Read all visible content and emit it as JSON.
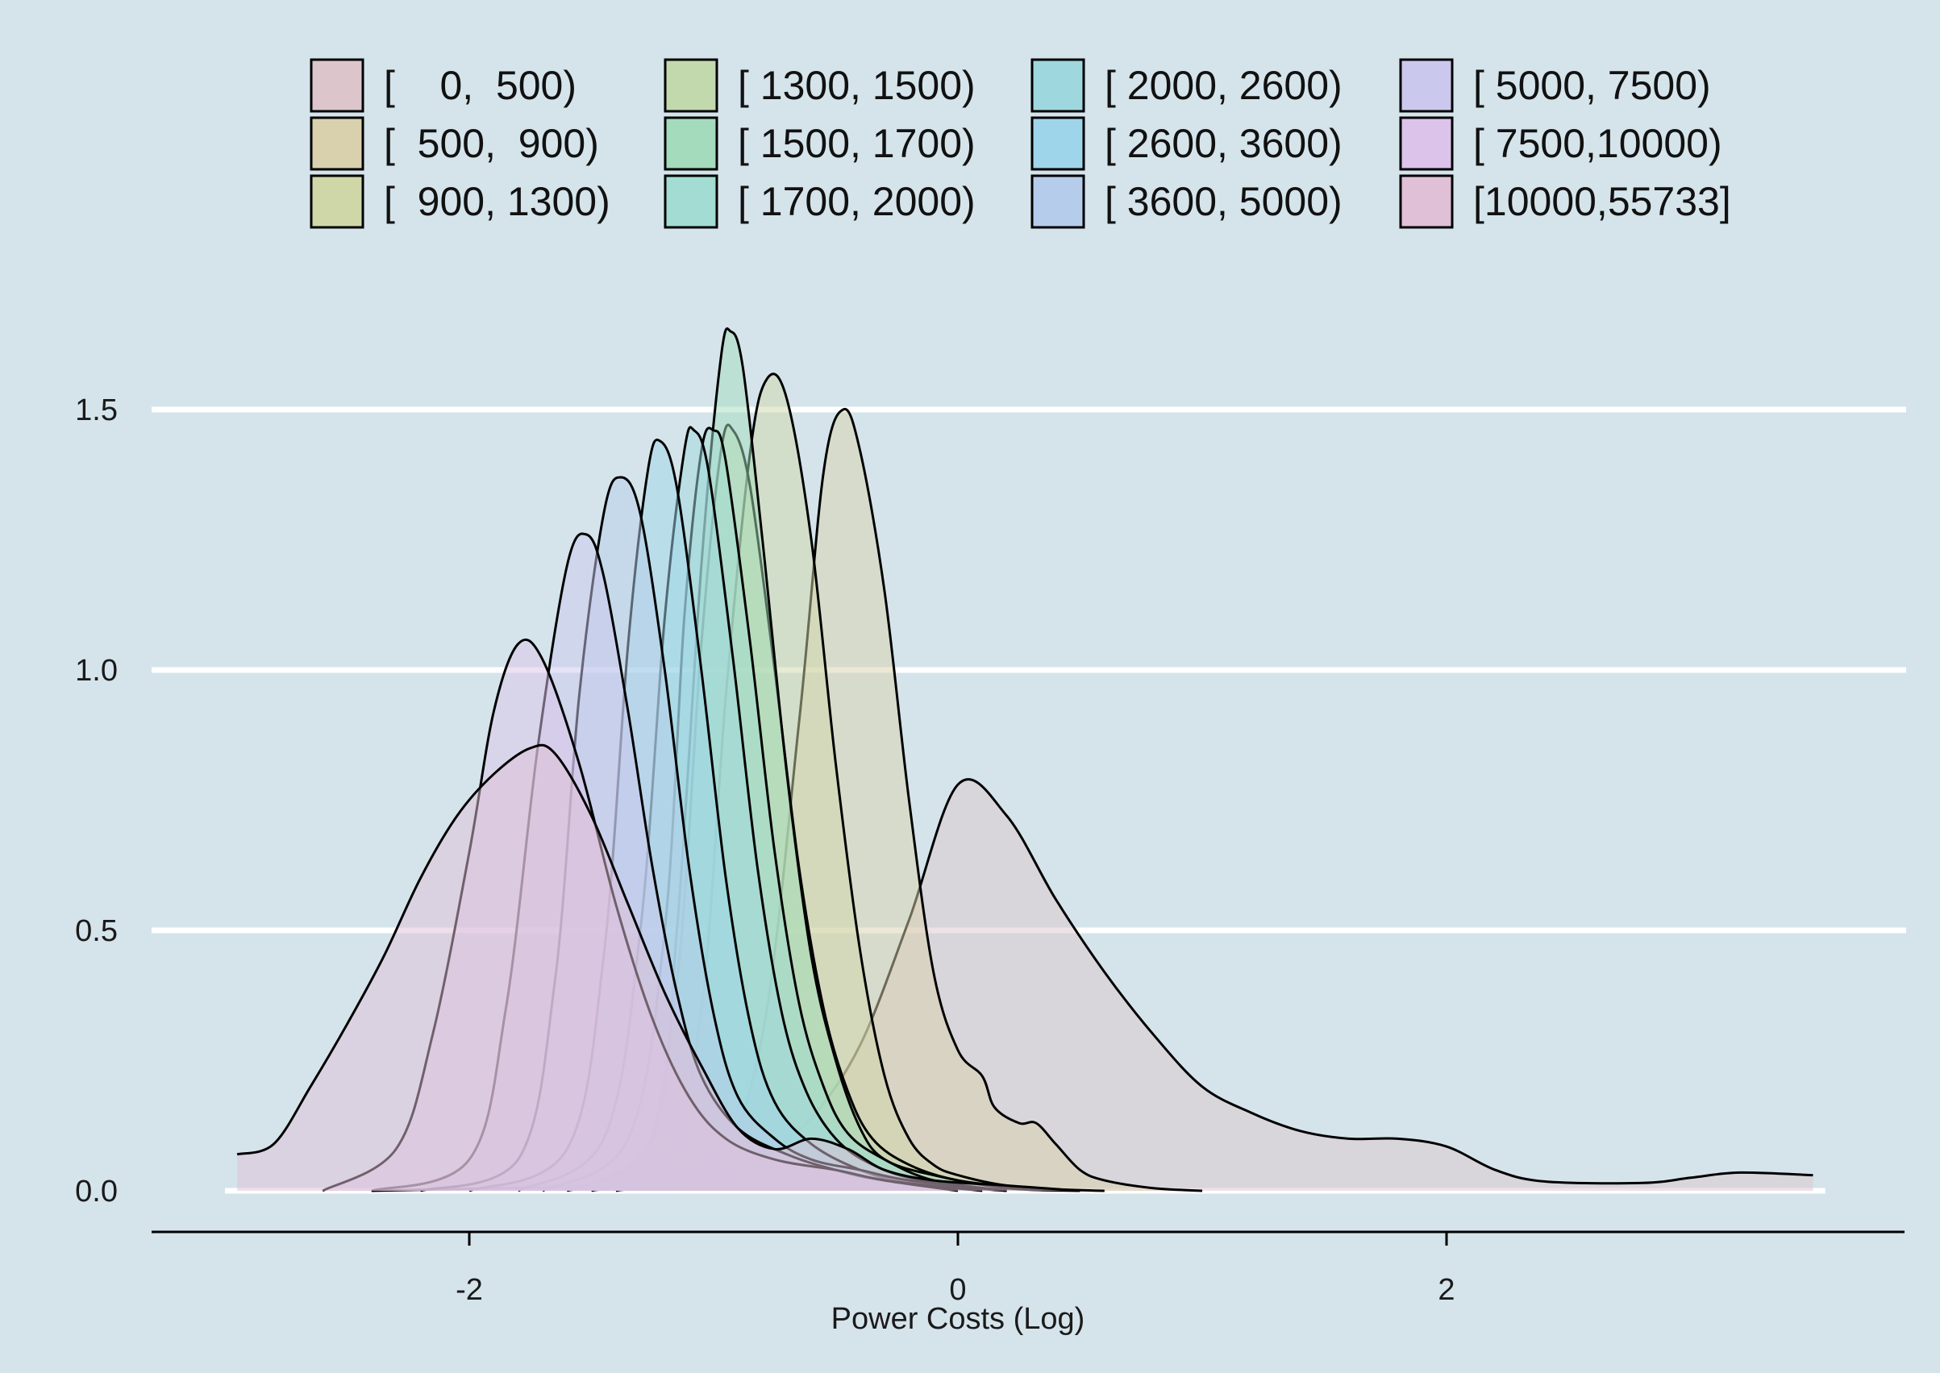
{
  "chart_data": {
    "type": "area",
    "title": "",
    "xlabel": "Power Costs (Log)",
    "ylabel": "",
    "xlim": [
      -3.0,
      3.7
    ],
    "ylim": [
      0.0,
      1.7
    ],
    "x_ticks": [
      -2,
      0,
      2
    ],
    "x_tick_labels": [
      "-2",
      "0",
      "2"
    ],
    "y_ticks": [
      0.0,
      0.5,
      1.0,
      1.5
    ],
    "y_tick_labels": [
      "0.0",
      "0.5",
      "1.0",
      "1.5"
    ],
    "grid": "horizontal",
    "legend_position": "top",
    "series": [
      {
        "name": "[    0,  500)",
        "color": "#dcc6cb",
        "points": [
          [
            -2.4,
            0.0
          ],
          [
            -1.9,
            0.005
          ],
          [
            -1.4,
            0.01
          ],
          [
            -1.0,
            0.03
          ],
          [
            -0.8,
            0.07
          ],
          [
            -0.6,
            0.14
          ],
          [
            -0.4,
            0.28
          ],
          [
            -0.2,
            0.52
          ],
          [
            0.0,
            0.78
          ],
          [
            0.2,
            0.72
          ],
          [
            0.4,
            0.56
          ],
          [
            0.6,
            0.42
          ],
          [
            0.8,
            0.3
          ],
          [
            1.0,
            0.2
          ],
          [
            1.2,
            0.15
          ],
          [
            1.4,
            0.115
          ],
          [
            1.6,
            0.1
          ],
          [
            1.8,
            0.1
          ],
          [
            2.0,
            0.085
          ],
          [
            2.2,
            0.04
          ],
          [
            2.4,
            0.018
          ],
          [
            2.8,
            0.015
          ],
          [
            3.0,
            0.025
          ],
          [
            3.2,
            0.035
          ],
          [
            3.5,
            0.03
          ]
        ]
      },
      {
        "name": "[  500,  900)",
        "color": "#d9d1ad",
        "points": [
          [
            -1.4,
            0.0
          ],
          [
            -1.0,
            0.05
          ],
          [
            -0.8,
            0.3
          ],
          [
            -0.65,
            0.9
          ],
          [
            -0.55,
            1.38
          ],
          [
            -0.47,
            1.5
          ],
          [
            -0.4,
            1.42
          ],
          [
            -0.3,
            1.15
          ],
          [
            -0.2,
            0.75
          ],
          [
            -0.1,
            0.42
          ],
          [
            0.0,
            0.27
          ],
          [
            0.1,
            0.22
          ],
          [
            0.15,
            0.16
          ],
          [
            0.25,
            0.13
          ],
          [
            0.32,
            0.13
          ],
          [
            0.4,
            0.09
          ],
          [
            0.5,
            0.04
          ],
          [
            0.6,
            0.02
          ],
          [
            0.8,
            0.005
          ],
          [
            1.0,
            0.0
          ]
        ]
      },
      {
        "name": "[  900, 1300)",
        "color": "#cfd7a8",
        "points": [
          [
            -1.5,
            0.0
          ],
          [
            -1.2,
            0.04
          ],
          [
            -1.05,
            0.35
          ],
          [
            -0.95,
            0.95
          ],
          [
            -0.85,
            1.42
          ],
          [
            -0.78,
            1.56
          ],
          [
            -0.7,
            1.52
          ],
          [
            -0.6,
            1.25
          ],
          [
            -0.5,
            0.82
          ],
          [
            -0.4,
            0.46
          ],
          [
            -0.3,
            0.22
          ],
          [
            -0.2,
            0.1
          ],
          [
            -0.1,
            0.05
          ],
          [
            0.0,
            0.03
          ],
          [
            0.2,
            0.01
          ],
          [
            0.5,
            0.0
          ]
        ]
      },
      {
        "name": "[ 1300, 1500)",
        "color": "#c2d9ae",
        "points": [
          [
            -1.6,
            0.0
          ],
          [
            -1.3,
            0.05
          ],
          [
            -1.15,
            0.4
          ],
          [
            -1.05,
            1.05
          ],
          [
            -0.97,
            1.42
          ],
          [
            -0.92,
            1.46
          ],
          [
            -0.85,
            1.35
          ],
          [
            -0.75,
            1.0
          ],
          [
            -0.65,
            0.62
          ],
          [
            -0.55,
            0.35
          ],
          [
            -0.45,
            0.19
          ],
          [
            -0.35,
            0.1
          ],
          [
            -0.2,
            0.05
          ],
          [
            0.0,
            0.02
          ],
          [
            0.3,
            0.005
          ],
          [
            0.6,
            0.0
          ]
        ]
      },
      {
        "name": "[ 1500, 1700)",
        "color": "#a3dbbc",
        "points": [
          [
            -1.6,
            0.0
          ],
          [
            -1.25,
            0.1
          ],
          [
            -1.15,
            0.5
          ],
          [
            -1.05,
            1.2
          ],
          [
            -0.97,
            1.6
          ],
          [
            -0.93,
            1.65
          ],
          [
            -0.88,
            1.58
          ],
          [
            -0.8,
            1.25
          ],
          [
            -0.7,
            0.8
          ],
          [
            -0.6,
            0.45
          ],
          [
            -0.5,
            0.25
          ],
          [
            -0.4,
            0.12
          ],
          [
            -0.3,
            0.06
          ],
          [
            -0.1,
            0.03
          ],
          [
            0.2,
            0.005
          ],
          [
            0.5,
            0.0
          ]
        ]
      },
      {
        "name": "[ 1700, 2000)",
        "color": "#a2dcd2",
        "points": [
          [
            -1.7,
            0.0
          ],
          [
            -1.35,
            0.1
          ],
          [
            -1.2,
            0.5
          ],
          [
            -1.12,
            1.1
          ],
          [
            -1.05,
            1.42
          ],
          [
            -1.0,
            1.46
          ],
          [
            -0.95,
            1.4
          ],
          [
            -0.85,
            1.05
          ],
          [
            -0.75,
            0.65
          ],
          [
            -0.65,
            0.36
          ],
          [
            -0.55,
            0.2
          ],
          [
            -0.45,
            0.11
          ],
          [
            -0.3,
            0.06
          ],
          [
            -0.1,
            0.02
          ],
          [
            0.2,
            0.0
          ]
        ]
      },
      {
        "name": "[ 2000, 2600)",
        "color": "#9fd7de",
        "points": [
          [
            -1.8,
            0.0
          ],
          [
            -1.45,
            0.1
          ],
          [
            -1.3,
            0.5
          ],
          [
            -1.2,
            1.1
          ],
          [
            -1.12,
            1.42
          ],
          [
            -1.08,
            1.46
          ],
          [
            -1.02,
            1.38
          ],
          [
            -0.92,
            1.02
          ],
          [
            -0.82,
            0.62
          ],
          [
            -0.72,
            0.34
          ],
          [
            -0.62,
            0.19
          ],
          [
            -0.5,
            0.1
          ],
          [
            -0.35,
            0.05
          ],
          [
            -0.15,
            0.02
          ],
          [
            0.2,
            0.0
          ]
        ]
      },
      {
        "name": "[ 2600, 3600)",
        "color": "#9fd5ea",
        "points": [
          [
            -2.0,
            0.0
          ],
          [
            -1.6,
            0.08
          ],
          [
            -1.45,
            0.45
          ],
          [
            -1.35,
            1.05
          ],
          [
            -1.27,
            1.38
          ],
          [
            -1.22,
            1.44
          ],
          [
            -1.15,
            1.35
          ],
          [
            -1.05,
            1.0
          ],
          [
            -0.95,
            0.6
          ],
          [
            -0.85,
            0.32
          ],
          [
            -0.75,
            0.17
          ],
          [
            -0.6,
            0.09
          ],
          [
            -0.4,
            0.04
          ],
          [
            -0.2,
            0.015
          ],
          [
            0.2,
            0.0
          ]
        ]
      },
      {
        "name": "[ 3600, 5000)",
        "color": "#b5cdea",
        "points": [
          [
            -2.2,
            0.0
          ],
          [
            -1.8,
            0.06
          ],
          [
            -1.65,
            0.4
          ],
          [
            -1.55,
            0.95
          ],
          [
            -1.45,
            1.3
          ],
          [
            -1.38,
            1.37
          ],
          [
            -1.3,
            1.3
          ],
          [
            -1.2,
            1.0
          ],
          [
            -1.1,
            0.62
          ],
          [
            -1.0,
            0.34
          ],
          [
            -0.9,
            0.18
          ],
          [
            -0.75,
            0.1
          ],
          [
            -0.6,
            0.06
          ],
          [
            -0.4,
            0.04
          ],
          [
            -0.2,
            0.02
          ],
          [
            0.2,
            0.0
          ]
        ]
      },
      {
        "name": "[ 5000, 7500)",
        "color": "#cbc8ee",
        "points": [
          [
            -2.4,
            0.0
          ],
          [
            -2.0,
            0.06
          ],
          [
            -1.85,
            0.35
          ],
          [
            -1.72,
            0.85
          ],
          [
            -1.6,
            1.2
          ],
          [
            -1.52,
            1.26
          ],
          [
            -1.45,
            1.18
          ],
          [
            -1.35,
            0.92
          ],
          [
            -1.25,
            0.62
          ],
          [
            -1.15,
            0.38
          ],
          [
            -1.05,
            0.22
          ],
          [
            -0.9,
            0.12
          ],
          [
            -0.7,
            0.07
          ],
          [
            -0.5,
            0.04
          ],
          [
            -0.3,
            0.02
          ],
          [
            0.1,
            0.0
          ]
        ]
      },
      {
        "name": "[ 7500,10000)",
        "color": "#dcc3ea",
        "points": [
          [
            -2.6,
            0.0
          ],
          [
            -2.3,
            0.08
          ],
          [
            -2.15,
            0.3
          ],
          [
            -2.0,
            0.65
          ],
          [
            -1.9,
            0.92
          ],
          [
            -1.8,
            1.05
          ],
          [
            -1.7,
            1.02
          ],
          [
            -1.55,
            0.82
          ],
          [
            -1.4,
            0.55
          ],
          [
            -1.25,
            0.33
          ],
          [
            -1.1,
            0.18
          ],
          [
            -0.95,
            0.1
          ],
          [
            -0.75,
            0.06
          ],
          [
            -0.5,
            0.04
          ],
          [
            -0.3,
            0.02
          ],
          [
            0.0,
            0.0
          ]
        ]
      },
      {
        "name": "[10000,55733]",
        "color": "#dfc0d6",
        "points": [
          [
            -2.95,
            0.07
          ],
          [
            -2.8,
            0.09
          ],
          [
            -2.65,
            0.2
          ],
          [
            -2.5,
            0.32
          ],
          [
            -2.35,
            0.45
          ],
          [
            -2.2,
            0.6
          ],
          [
            -2.05,
            0.72
          ],
          [
            -1.9,
            0.8
          ],
          [
            -1.75,
            0.85
          ],
          [
            -1.65,
            0.84
          ],
          [
            -1.5,
            0.72
          ],
          [
            -1.35,
            0.55
          ],
          [
            -1.2,
            0.38
          ],
          [
            -1.05,
            0.24
          ],
          [
            -0.9,
            0.12
          ],
          [
            -0.75,
            0.08
          ],
          [
            -0.6,
            0.1
          ],
          [
            -0.45,
            0.08
          ],
          [
            -0.3,
            0.04
          ],
          [
            -0.1,
            0.02
          ],
          [
            0.2,
            0.01
          ],
          [
            0.5,
            0.0
          ]
        ]
      }
    ]
  }
}
